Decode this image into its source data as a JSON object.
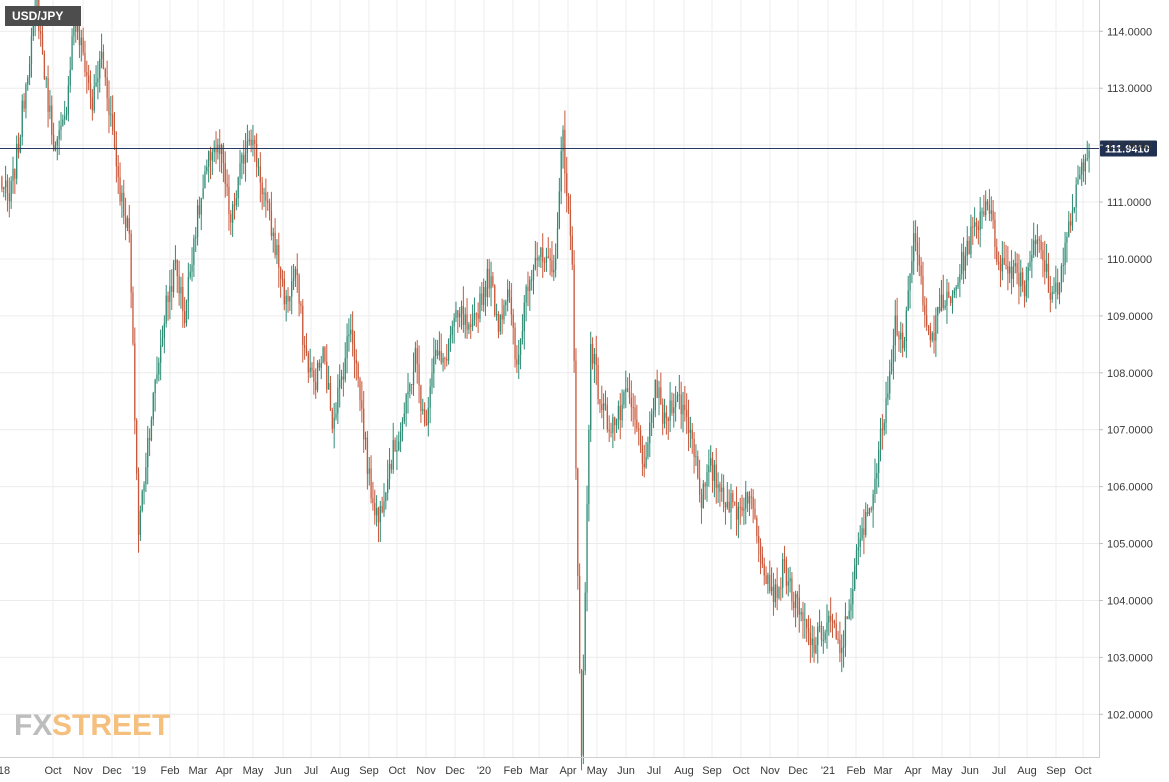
{
  "chart_data": {
    "type": "candlestick",
    "symbol": "USD/JPY",
    "ylim": [
      101.25,
      114.55
    ],
    "y_ticks": [
      "102.0000",
      "103.0000",
      "104.0000",
      "105.0000",
      "106.0000",
      "107.0000",
      "108.0000",
      "109.0000",
      "110.0000",
      "111.0000",
      "112.0000",
      "113.0000",
      "114.0000"
    ],
    "x_ticks": [
      "'18",
      "Oct",
      "Nov",
      "Dec",
      "'19",
      "Feb",
      "Mar",
      "Apr",
      "May",
      "Jun",
      "Jul",
      "Aug",
      "Sep",
      "Oct",
      "Nov",
      "Dec",
      "'20",
      "Feb",
      "Mar",
      "Apr",
      "May",
      "Jun",
      "Jul",
      "Aug",
      "Sep",
      "Oct",
      "Nov",
      "Dec",
      "'21",
      "Feb",
      "Mar",
      "Apr",
      "May",
      "Jun",
      "Jul",
      "Aug",
      "Sep",
      "Oct"
    ],
    "horizontal_line": {
      "value": 111.941,
      "label": "111.9410"
    },
    "closes": [
      111.4,
      111.0,
      112.0,
      113.4,
      114.5,
      113.0,
      111.9,
      112.4,
      114.2,
      113.6,
      112.7,
      113.6,
      112.5,
      111.2,
      110.4,
      105.2,
      106.8,
      108.0,
      109.2,
      109.9,
      109.0,
      110.4,
      111.2,
      112.0,
      111.8,
      110.6,
      111.5,
      112.3,
      111.6,
      110.8,
      110.1,
      109.2,
      109.8,
      108.4,
      107.8,
      108.3,
      107.2,
      107.9,
      108.9,
      107.6,
      106.1,
      105.4,
      106.3,
      106.8,
      107.4,
      108.3,
      107.0,
      108.4,
      108.1,
      108.8,
      109.0,
      108.6,
      109.3,
      109.7,
      108.9,
      109.5,
      108.0,
      109.5,
      110.1,
      109.9,
      109.7,
      112.2,
      109.8,
      101.2,
      108.6,
      107.5,
      107.1,
      107.2,
      107.6,
      107.0,
      106.3,
      107.8,
      107.1,
      107.6,
      107.4,
      106.9,
      105.8,
      106.3,
      106.0,
      105.7,
      105.6,
      105.9,
      105.3,
      104.5,
      104.1,
      104.6,
      104.0,
      103.6,
      103.2,
      103.4,
      103.7,
      103.0,
      103.9,
      104.9,
      105.5,
      106.3,
      107.6,
      108.9,
      108.5,
      110.4,
      109.4,
      108.5,
      109.3,
      109.2,
      109.8,
      110.3,
      110.7,
      111.1,
      110.1,
      109.8,
      109.9,
      109.5,
      110.4,
      110.0,
      109.3,
      109.8,
      110.7,
      111.4,
      111.9
    ],
    "colors": {
      "up": "#2e8b74",
      "down": "#c9583b",
      "line": "#253a5e",
      "label_bg": "#1f3050",
      "symbol_bg": "#4d4d4d"
    }
  },
  "branding": {
    "logo_fx": "FX",
    "logo_street": "STREET"
  }
}
